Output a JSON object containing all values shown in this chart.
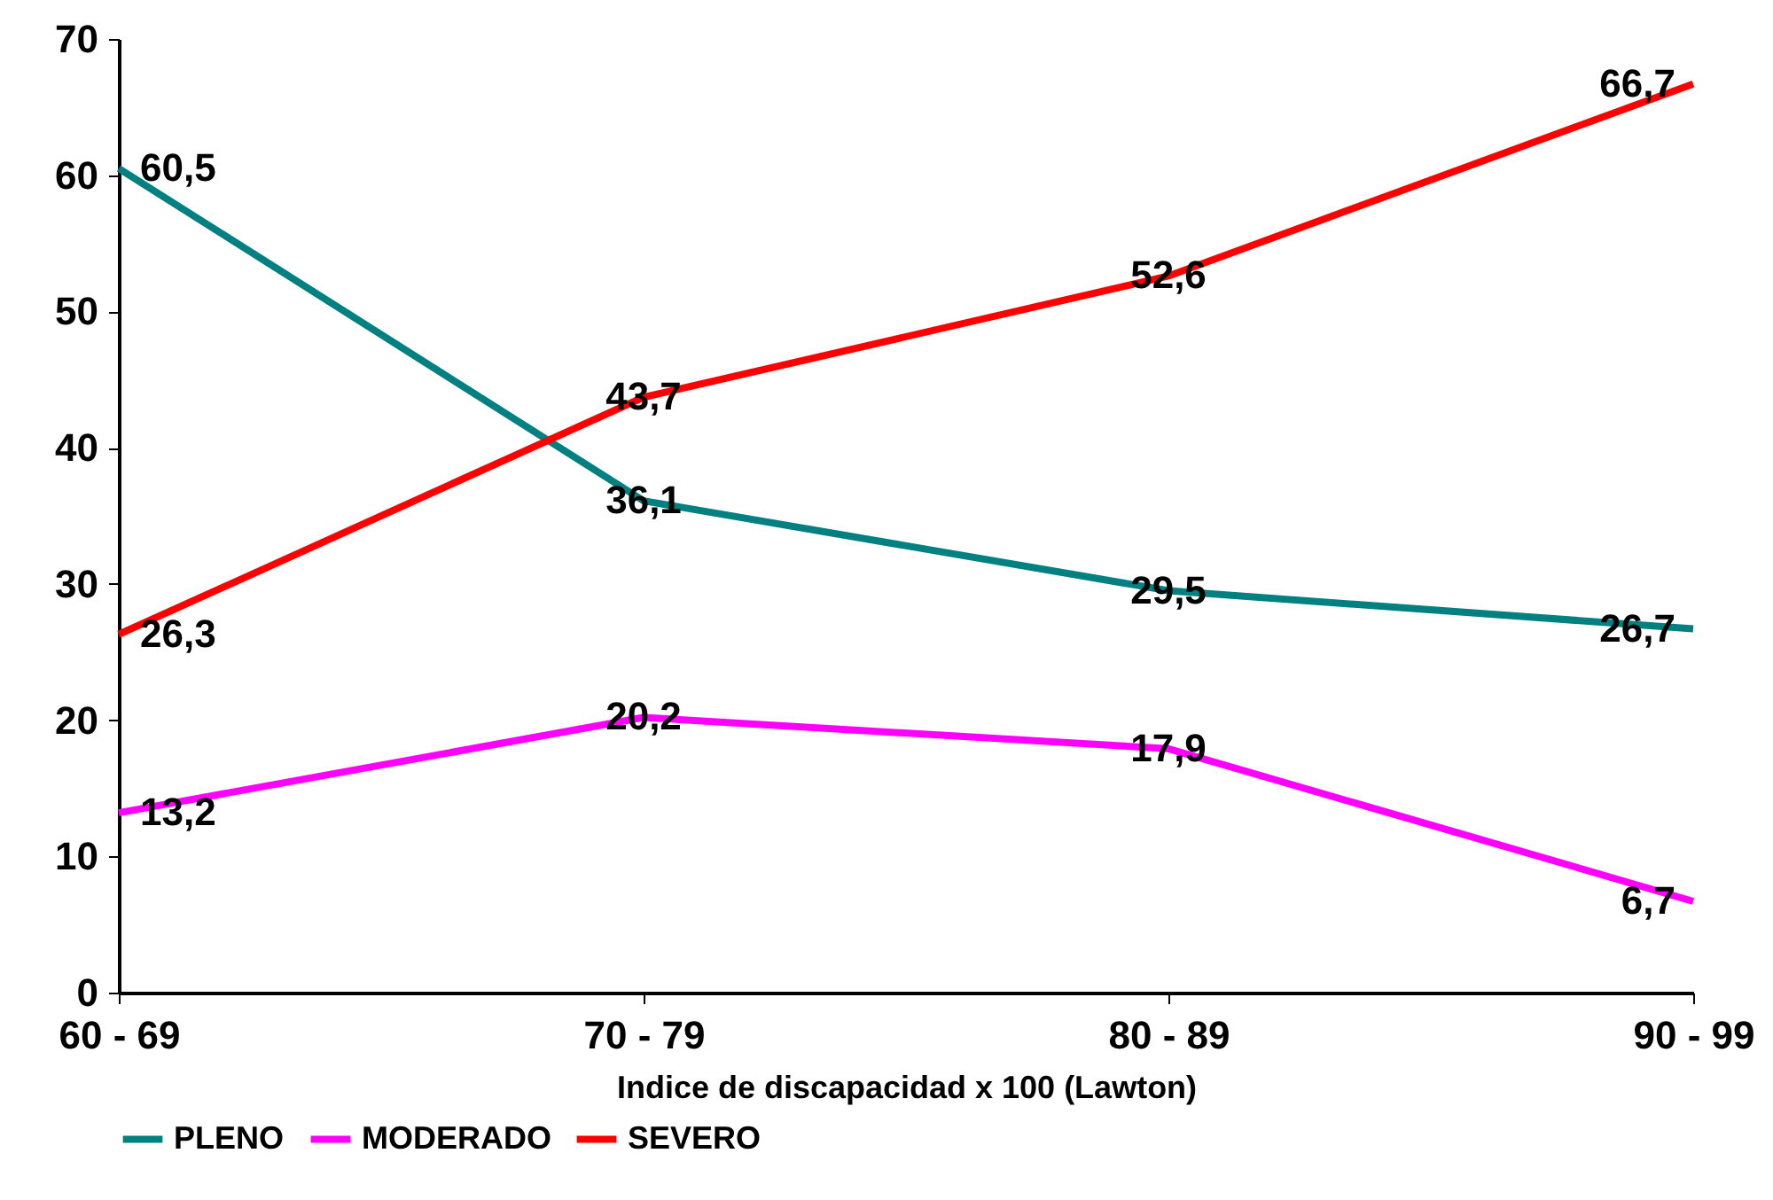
{
  "chart_data": {
    "type": "line",
    "xlabel": "Indice de discapacidad x 100 (Lawton)",
    "categories": [
      "60 - 69",
      "70 - 79",
      "80 - 89",
      "90 - 99"
    ],
    "series": [
      {
        "name": "PLENO",
        "color": "#008080",
        "values": [
          60.5,
          36.1,
          29.5,
          26.7
        ],
        "value_labels": [
          "60,5",
          "36,1",
          "29,5",
          "26,7"
        ]
      },
      {
        "name": "MODERADO",
        "color": "#ff00ff",
        "values": [
          13.2,
          20.2,
          17.9,
          6.7
        ],
        "value_labels": [
          "13,2",
          "20,2",
          "17,9",
          "6,7"
        ]
      },
      {
        "name": "SEVERO",
        "color": "#ff0000",
        "values": [
          26.3,
          43.7,
          52.6,
          66.7
        ],
        "value_labels": [
          "26,3",
          "43,7",
          "52,6",
          "66,7"
        ]
      }
    ],
    "ylim": [
      0,
      70
    ],
    "yticks": [
      0,
      10,
      20,
      30,
      40,
      50,
      60,
      70
    ],
    "grid": false,
    "legend": "bottom",
    "marker": "none",
    "line_style": "solid"
  }
}
